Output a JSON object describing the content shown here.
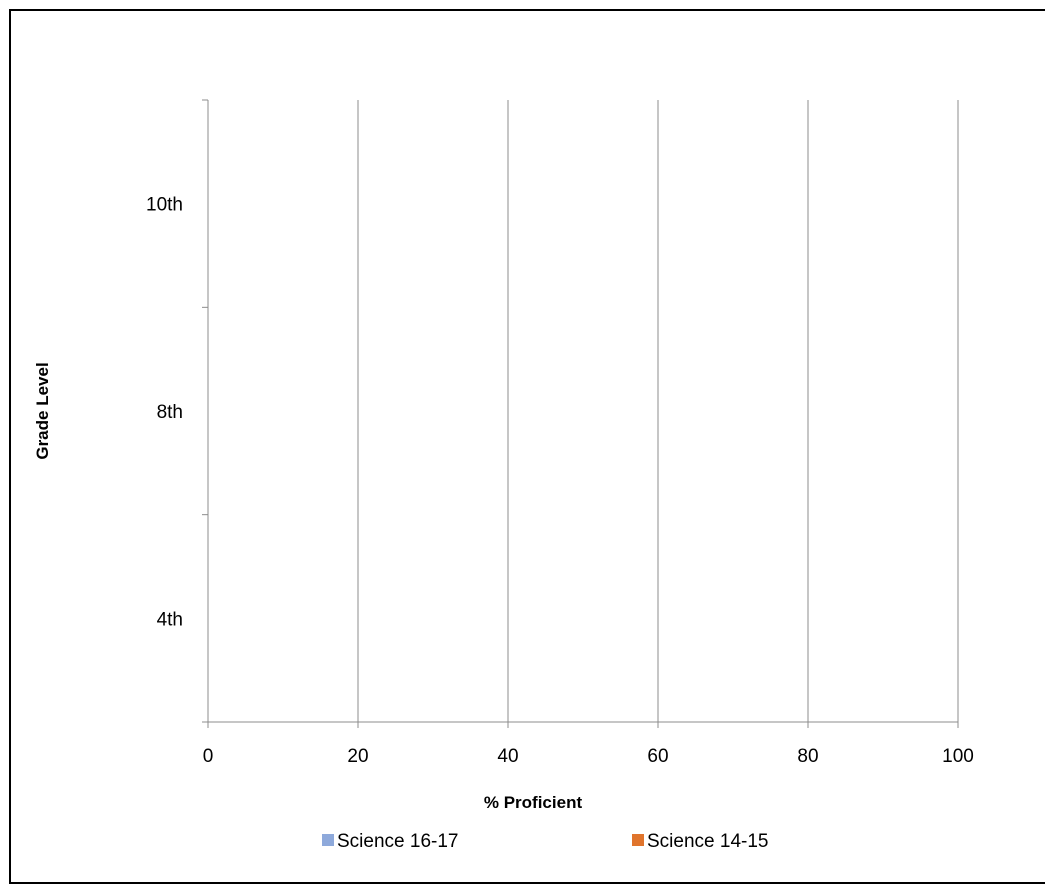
{
  "chart_data": {
    "type": "bar",
    "orientation": "horizontal",
    "title": "",
    "xlabel": "% Proficient",
    "ylabel": "Grade Level",
    "xlim": [
      0,
      100
    ],
    "x_ticks": [
      0,
      20,
      40,
      60,
      80,
      100
    ],
    "categories": [
      "4th",
      "8th",
      "10th"
    ],
    "series": [
      {
        "name": "Science 16-17",
        "color": "#8EA9DB",
        "values": [
          null,
          null,
          null
        ]
      },
      {
        "name": "Science 14-15",
        "color": "#E0742C",
        "values": [
          null,
          null,
          null
        ]
      }
    ],
    "grid": "vertical",
    "legend_position": "bottom"
  }
}
